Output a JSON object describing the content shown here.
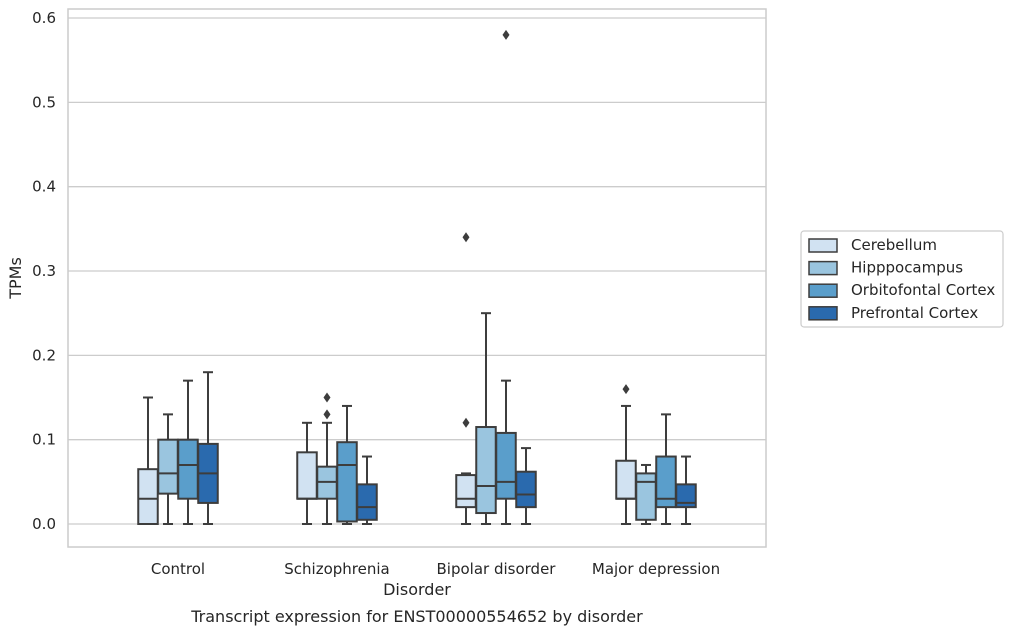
{
  "chart_data": {
    "type": "box",
    "title": "",
    "caption": "Transcript expression for ENST00000554652 by disorder",
    "xlabel": "Disorder",
    "ylabel": "TPMs",
    "ylim": [
      -0.028,
      0.61
    ],
    "yticks": [
      0.0,
      0.1,
      0.2,
      0.3,
      0.4,
      0.5,
      0.6
    ],
    "ytick_labels": [
      "0.0",
      "0.1",
      "0.2",
      "0.3",
      "0.4",
      "0.5",
      "0.6"
    ],
    "grid": true,
    "legend_position": "right",
    "categories": [
      "Control",
      "Schizophrenia",
      "Bipolar disorder",
      "Major depression"
    ],
    "series": [
      {
        "name": "Cerebellum",
        "color": "#d1e2f2",
        "boxes": [
          {
            "whislo": 0.0,
            "q1": 0.0,
            "med": 0.03,
            "q3": 0.065,
            "whishi": 0.15,
            "fliers": []
          },
          {
            "whislo": 0.0,
            "q1": 0.03,
            "med": 0.03,
            "q3": 0.085,
            "whishi": 0.12,
            "fliers": []
          },
          {
            "whislo": 0.0,
            "q1": 0.02,
            "med": 0.03,
            "q3": 0.058,
            "whishi": 0.06,
            "fliers": [
              0.12,
              0.34
            ]
          },
          {
            "whislo": 0.0,
            "q1": 0.03,
            "med": 0.03,
            "q3": 0.075,
            "whishi": 0.14,
            "fliers": [
              0.16
            ]
          }
        ]
      },
      {
        "name": "Hipppocampus",
        "color": "#9ac5df",
        "boxes": [
          {
            "whislo": 0.0,
            "q1": 0.036,
            "med": 0.06,
            "q3": 0.1,
            "whishi": 0.13,
            "fliers": []
          },
          {
            "whislo": 0.0,
            "q1": 0.03,
            "med": 0.05,
            "q3": 0.068,
            "whishi": 0.12,
            "fliers": [
              0.13,
              0.15
            ]
          },
          {
            "whislo": 0.0,
            "q1": 0.013,
            "med": 0.045,
            "q3": 0.115,
            "whishi": 0.25,
            "fliers": []
          },
          {
            "whislo": 0.0,
            "q1": 0.005,
            "med": 0.05,
            "q3": 0.06,
            "whishi": 0.07,
            "fliers": []
          }
        ]
      },
      {
        "name": "Orbitofontal Cortex",
        "color": "#5a9ecb",
        "boxes": [
          {
            "whislo": 0.0,
            "q1": 0.03,
            "med": 0.07,
            "q3": 0.1,
            "whishi": 0.17,
            "fliers": []
          },
          {
            "whislo": 0.0,
            "q1": 0.003,
            "med": 0.07,
            "q3": 0.097,
            "whishi": 0.14,
            "fliers": []
          },
          {
            "whislo": 0.0,
            "q1": 0.03,
            "med": 0.05,
            "q3": 0.108,
            "whishi": 0.17,
            "fliers": [
              0.58
            ]
          },
          {
            "whislo": 0.0,
            "q1": 0.02,
            "med": 0.03,
            "q3": 0.08,
            "whishi": 0.13,
            "fliers": []
          }
        ]
      },
      {
        "name": "Prefrontal Cortex",
        "color": "#2a6aae",
        "boxes": [
          {
            "whislo": 0.0,
            "q1": 0.025,
            "med": 0.06,
            "q3": 0.095,
            "whishi": 0.18,
            "fliers": []
          },
          {
            "whislo": 0.0,
            "q1": 0.005,
            "med": 0.02,
            "q3": 0.047,
            "whishi": 0.08,
            "fliers": []
          },
          {
            "whislo": 0.0,
            "q1": 0.02,
            "med": 0.035,
            "q3": 0.062,
            "whishi": 0.09,
            "fliers": []
          },
          {
            "whislo": 0.0,
            "q1": 0.02,
            "med": 0.025,
            "q3": 0.047,
            "whishi": 0.08,
            "fliers": []
          }
        ]
      }
    ]
  }
}
